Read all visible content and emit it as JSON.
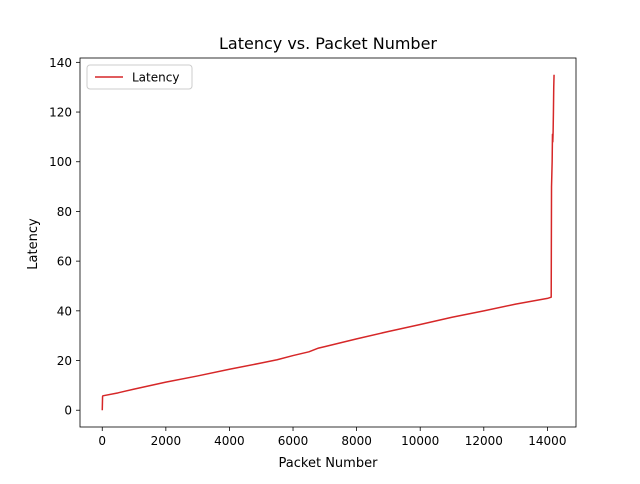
{
  "chart_data": {
    "type": "line",
    "title": "Latency vs. Packet Number",
    "xlabel": "Packet Number",
    "ylabel": "Latency",
    "xlim": [
      -700,
      14900
    ],
    "ylim": [
      -6.75,
      141.75
    ],
    "x_ticks": [
      0,
      2000,
      4000,
      6000,
      8000,
      10000,
      12000,
      14000
    ],
    "y_ticks": [
      0,
      20,
      40,
      60,
      80,
      100,
      120,
      140
    ],
    "x_tick_labels": [
      "0",
      "2000",
      "4000",
      "6000",
      "8000",
      "10000",
      "12000",
      "14000"
    ],
    "y_tick_labels": [
      "0",
      "20",
      "40",
      "60",
      "80",
      "100",
      "120",
      "140"
    ],
    "grid": false,
    "legend": "upper-left",
    "series": [
      {
        "name": "Latency",
        "color": "#d62728",
        "x": [
          0,
          10,
          20,
          500,
          1000,
          2000,
          3000,
          4000,
          5000,
          5500,
          6000,
          6500,
          6800,
          7000,
          8000,
          9000,
          10000,
          11000,
          12000,
          13000,
          14000,
          14120,
          14130,
          14140,
          14150,
          14160,
          14170,
          14180,
          14190,
          14200,
          14210
        ],
        "y": [
          0,
          5.5,
          5.8,
          7,
          8.5,
          11.3,
          13.8,
          16.5,
          19,
          20.3,
          22,
          23.5,
          25,
          25.6,
          28.7,
          31.7,
          34.5,
          37.4,
          40,
          42.7,
          45,
          45.5,
          90,
          95,
          100,
          111,
          108,
          112,
          120,
          130,
          135
        ]
      }
    ]
  }
}
